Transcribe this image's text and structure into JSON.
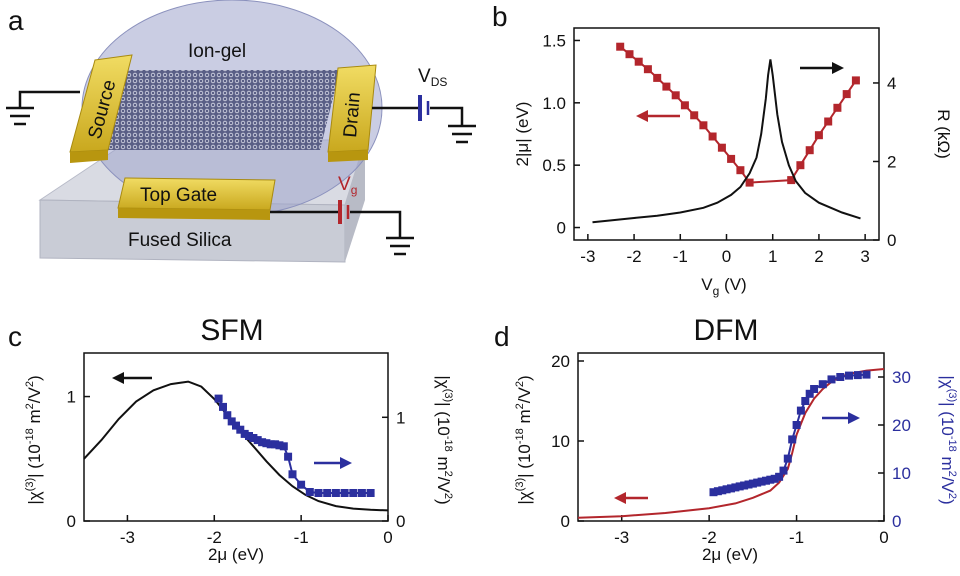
{
  "panels": {
    "a": "a",
    "b": "b",
    "c": "c",
    "d": "d"
  },
  "device": {
    "ion_gel": "Ion-gel",
    "source": "Source",
    "drain": "Drain",
    "top_gate": "Top Gate",
    "substrate": "Fused Silica",
    "vds_main": "V",
    "vds_sub": "DS",
    "vg_main": "V",
    "vg_sub": "g"
  },
  "colors": {
    "black": "#111111",
    "red": "#b3262c",
    "blue": "#2b2f9e",
    "gold": "#e3c53a",
    "gel": "#9ea4cc"
  },
  "chart_data": [
    {
      "id": "b",
      "type": "line",
      "xlabel_main": "V",
      "xlabel_sub": "g",
      "xlabel_unit": " (V)",
      "ylabel_left": "2|μ| (eV)",
      "ylabel_right": "R (kΩ)",
      "xlim": [
        -3.3,
        3.3
      ],
      "ylim_left": [
        -0.1,
        1.6
      ],
      "ylim_right": [
        0,
        5.4
      ],
      "xticks": [
        -3,
        -2,
        -1,
        0,
        1,
        2,
        3
      ],
      "yticks_left": [
        0,
        0.5,
        1.0,
        1.5
      ],
      "yticks_left_labels": [
        "0",
        "0.5",
        "1.0",
        "1.5"
      ],
      "yticks_right": [
        0,
        2,
        4
      ],
      "series": [
        {
          "axis": "left",
          "style": "markers+line",
          "color": "#b3262c",
          "x": [
            -2.3,
            -2.1,
            -1.9,
            -1.7,
            -1.5,
            -1.3,
            -1.1,
            -0.9,
            -0.7,
            -0.5,
            -0.3,
            -0.1,
            0.1,
            0.3,
            0.5,
            1.4,
            1.6,
            1.8,
            2.0,
            2.2,
            2.4,
            2.6,
            2.8
          ],
          "y": [
            1.45,
            1.39,
            1.33,
            1.27,
            1.2,
            1.13,
            1.06,
            0.98,
            0.9,
            0.82,
            0.73,
            0.64,
            0.55,
            0.46,
            0.36,
            0.38,
            0.5,
            0.62,
            0.74,
            0.85,
            0.96,
            1.07,
            1.18
          ]
        },
        {
          "axis": "right",
          "style": "line",
          "color": "#111111",
          "x": [
            -2.9,
            -2.5,
            -2.0,
            -1.5,
            -1.0,
            -0.5,
            -0.2,
            0.1,
            0.3,
            0.5,
            0.65,
            0.75,
            0.85,
            0.9,
            0.95,
            1.0,
            1.1,
            1.2,
            1.35,
            1.5,
            1.7,
            2.0,
            2.5,
            2.9
          ],
          "y": [
            0.45,
            0.5,
            0.56,
            0.62,
            0.7,
            0.82,
            0.95,
            1.15,
            1.35,
            1.7,
            2.1,
            2.7,
            3.6,
            4.2,
            4.6,
            4.2,
            3.2,
            2.5,
            1.9,
            1.5,
            1.2,
            0.95,
            0.7,
            0.55
          ]
        }
      ]
    },
    {
      "id": "c",
      "type": "line",
      "title": "SFM",
      "xlabel": "2μ (eV)",
      "ylabel_left_main": "|χ",
      "ylabel_left_sup": "(3)",
      "ylabel_left_rest": "| (10",
      "ylabel_left_sup2": "-18",
      "ylabel_left_unit": " m²/V²)",
      "ylabel_right": "|χ(3)| (10-18 m²/V²)",
      "xlim": [
        -3.5,
        0
      ],
      "ylim_left": [
        0,
        1.35
      ],
      "ylim_right": [
        0,
        1.62
      ],
      "xticks": [
        -3,
        -2,
        -1,
        0
      ],
      "yticks_left": [
        0,
        1
      ],
      "yticks_right": [
        0,
        1
      ],
      "series": [
        {
          "axis": "left",
          "style": "line",
          "color": "#111111",
          "x": [
            -3.5,
            -3.3,
            -3.1,
            -2.9,
            -2.7,
            -2.5,
            -2.3,
            -2.15,
            -2.0,
            -1.85,
            -1.7,
            -1.55,
            -1.4,
            -1.25,
            -1.1,
            -0.95,
            -0.8,
            -0.6,
            -0.4,
            -0.2,
            0
          ],
          "y": [
            0.5,
            0.65,
            0.82,
            0.96,
            1.05,
            1.1,
            1.12,
            1.08,
            0.98,
            0.85,
            0.72,
            0.6,
            0.48,
            0.37,
            0.28,
            0.21,
            0.16,
            0.12,
            0.1,
            0.09,
            0.085
          ]
        },
        {
          "axis": "right",
          "style": "markers+line",
          "color": "#2b2f9e",
          "x": [
            -1.95,
            -1.9,
            -1.85,
            -1.8,
            -1.75,
            -1.7,
            -1.65,
            -1.6,
            -1.55,
            -1.5,
            -1.45,
            -1.4,
            -1.35,
            -1.3,
            -1.25,
            -1.2,
            -1.15,
            -1.1,
            -1.0,
            -0.9,
            -0.8,
            -0.7,
            -0.6,
            -0.5,
            -0.4,
            -0.3,
            -0.2
          ],
          "y": [
            1.18,
            1.1,
            1.02,
            0.96,
            0.92,
            0.88,
            0.84,
            0.82,
            0.8,
            0.78,
            0.76,
            0.75,
            0.74,
            0.74,
            0.73,
            0.72,
            0.62,
            0.45,
            0.35,
            0.28,
            0.27,
            0.27,
            0.27,
            0.27,
            0.27,
            0.27,
            0.27
          ]
        }
      ]
    },
    {
      "id": "d",
      "type": "line",
      "title": "DFM",
      "xlabel": "2μ (eV)",
      "xlim": [
        -3.5,
        0
      ],
      "ylim_left": [
        0,
        21
      ],
      "ylim_right": [
        0,
        35
      ],
      "xticks": [
        -3,
        -2,
        -1,
        0
      ],
      "yticks_left": [
        0,
        10,
        20
      ],
      "yticks_right": [
        0,
        10,
        20,
        30
      ],
      "series": [
        {
          "axis": "left",
          "style": "line",
          "color": "#b3262c",
          "x": [
            -3.5,
            -3.0,
            -2.5,
            -2.0,
            -1.7,
            -1.5,
            -1.3,
            -1.2,
            -1.1,
            -1.05,
            -1.0,
            -0.9,
            -0.8,
            -0.7,
            -0.6,
            -0.5,
            -0.4,
            -0.2,
            0
          ],
          "y": [
            0.4,
            0.6,
            1.0,
            1.6,
            2.2,
            2.9,
            3.8,
            4.8,
            6.5,
            8.5,
            10.8,
            13.5,
            15.3,
            16.5,
            17.4,
            18.0,
            18.4,
            18.8,
            19.0
          ]
        },
        {
          "axis": "right",
          "style": "markers+line",
          "color": "#2b2f9e",
          "x": [
            -1.95,
            -1.9,
            -1.85,
            -1.8,
            -1.75,
            -1.7,
            -1.65,
            -1.6,
            -1.55,
            -1.5,
            -1.45,
            -1.4,
            -1.35,
            -1.3,
            -1.25,
            -1.2,
            -1.15,
            -1.1,
            -1.05,
            -1.0,
            -0.95,
            -0.9,
            -0.85,
            -0.8,
            -0.7,
            -0.6,
            -0.5,
            -0.4,
            -0.3,
            -0.2
          ],
          "y": [
            6,
            6.2,
            6.4,
            6.6,
            6.8,
            7.0,
            7.2,
            7.4,
            7.6,
            7.8,
            8.0,
            8.2,
            8.4,
            8.6,
            8.8,
            9.2,
            10.5,
            13,
            17,
            20,
            23,
            25,
            26.5,
            27.5,
            28.5,
            29.5,
            30,
            30.3,
            30.4,
            30.5
          ]
        }
      ]
    }
  ]
}
